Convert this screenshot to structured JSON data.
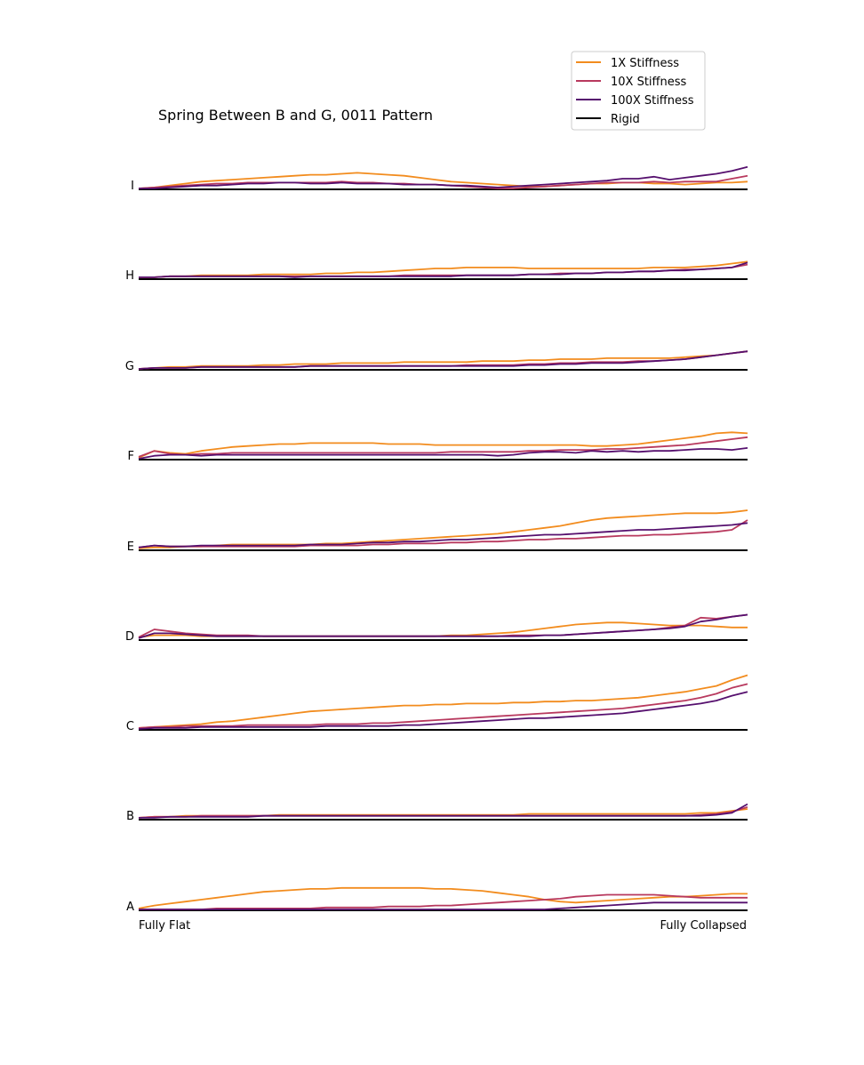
{
  "chart_data": {
    "type": "line",
    "title": "Spring Between B and G, 0011 Pattern",
    "x_start_label": "Fully Flat",
    "x_end_label": "Fully Collapsed",
    "legend_position": "top-right",
    "grid": false,
    "series_styles": [
      {
        "name": "1X Stiffness",
        "color": "#f28c1e"
      },
      {
        "name": "10X Stiffness",
        "color": "#b8395e"
      },
      {
        "name": "100X Stiffness",
        "color": "#56106e"
      },
      {
        "name": "Rigid",
        "color": "#000000"
      }
    ],
    "rows": [
      {
        "label": "I",
        "s1x": [
          0,
          1,
          3,
          5,
          7,
          8,
          9,
          10,
          11,
          12,
          13,
          14,
          14,
          15,
          16,
          15,
          14,
          13,
          11,
          9,
          7,
          6,
          5,
          4,
          3,
          2,
          2,
          3,
          4,
          5,
          5,
          6,
          6,
          5,
          5,
          4,
          5,
          6,
          6,
          7
        ],
        "s10x": [
          0,
          1,
          2,
          3,
          4,
          5,
          5,
          6,
          6,
          6,
          6,
          6,
          6,
          7,
          6,
          6,
          5,
          5,
          4,
          4,
          3,
          2,
          1,
          0,
          0,
          1,
          2,
          3,
          4,
          5,
          6,
          6,
          6,
          7,
          6,
          7,
          7,
          7,
          10,
          13
        ],
        "s100x": [
          0,
          0,
          1,
          2,
          3,
          3,
          4,
          5,
          5,
          6,
          6,
          5,
          5,
          6,
          5,
          5,
          5,
          4,
          4,
          4,
          3,
          3,
          2,
          1,
          2,
          3,
          4,
          5,
          6,
          7,
          8,
          10,
          10,
          12,
          9,
          11,
          13,
          15,
          18,
          22
        ]
      },
      {
        "label": "H",
        "s1x": [
          1,
          1,
          2,
          2,
          3,
          3,
          3,
          3,
          4,
          4,
          4,
          4,
          5,
          5,
          6,
          6,
          7,
          8,
          9,
          10,
          10,
          11,
          11,
          11,
          11,
          10,
          10,
          10,
          10,
          10,
          10,
          10,
          10,
          11,
          11,
          11,
          12,
          13,
          15,
          17
        ],
        "s10x": [
          1,
          1,
          2,
          2,
          2,
          2,
          2,
          2,
          2,
          2,
          2,
          2,
          2,
          2,
          2,
          2,
          2,
          3,
          3,
          3,
          3,
          3,
          3,
          3,
          3,
          4,
          4,
          5,
          5,
          5,
          6,
          6,
          7,
          7,
          8,
          9,
          9,
          10,
          11,
          14
        ],
        "s100x": [
          1,
          1,
          2,
          2,
          2,
          2,
          2,
          2,
          2,
          2,
          1,
          2,
          2,
          2,
          2,
          2,
          2,
          2,
          2,
          2,
          2,
          3,
          3,
          3,
          3,
          4,
          4,
          4,
          5,
          5,
          6,
          6,
          7,
          7,
          8,
          8,
          9,
          10,
          11,
          16
        ]
      },
      {
        "label": "G",
        "s1x": [
          0,
          1,
          2,
          2,
          3,
          3,
          3,
          3,
          4,
          4,
          5,
          5,
          5,
          6,
          6,
          6,
          6,
          7,
          7,
          7,
          7,
          7,
          8,
          8,
          8,
          9,
          9,
          10,
          10,
          10,
          11,
          11,
          11,
          11,
          11,
          12,
          13,
          14,
          16,
          18
        ],
        "s10x": [
          0,
          1,
          1,
          1,
          2,
          2,
          2,
          2,
          2,
          2,
          2,
          3,
          3,
          3,
          3,
          3,
          3,
          3,
          3,
          3,
          3,
          4,
          4,
          4,
          4,
          5,
          5,
          6,
          6,
          7,
          7,
          7,
          8,
          8,
          9,
          10,
          12,
          14,
          16,
          18
        ],
        "s100x": [
          0,
          1,
          1,
          1,
          2,
          2,
          2,
          2,
          2,
          2,
          2,
          3,
          3,
          3,
          3,
          3,
          3,
          3,
          3,
          3,
          3,
          3,
          3,
          3,
          3,
          4,
          4,
          5,
          5,
          6,
          6,
          6,
          7,
          8,
          9,
          10,
          12,
          14,
          16,
          18
        ]
      },
      {
        "label": "F",
        "s1x": [
          1,
          8,
          6,
          5,
          8,
          10,
          12,
          13,
          14,
          15,
          15,
          16,
          16,
          16,
          16,
          16,
          15,
          15,
          15,
          14,
          14,
          14,
          14,
          14,
          14,
          14,
          14,
          14,
          14,
          13,
          13,
          14,
          15,
          17,
          19,
          21,
          23,
          26,
          27,
          26
        ],
        "s10x": [
          2,
          8,
          5,
          4,
          5,
          5,
          6,
          6,
          6,
          6,
          6,
          6,
          6,
          6,
          6,
          6,
          6,
          6,
          6,
          6,
          7,
          7,
          7,
          7,
          7,
          8,
          8,
          9,
          9,
          9,
          10,
          10,
          11,
          12,
          13,
          14,
          16,
          18,
          20,
          22
        ],
        "s100x": [
          0,
          3,
          4,
          4,
          3,
          4,
          4,
          4,
          4,
          4,
          4,
          4,
          4,
          4,
          4,
          4,
          4,
          4,
          4,
          4,
          4,
          4,
          4,
          3,
          4,
          6,
          7,
          7,
          6,
          8,
          7,
          8,
          7,
          8,
          8,
          9,
          10,
          10,
          9,
          11
        ]
      },
      {
        "label": "E",
        "s1x": [
          1,
          2,
          2,
          3,
          3,
          4,
          5,
          5,
          5,
          5,
          5,
          5,
          6,
          6,
          7,
          8,
          9,
          10,
          11,
          12,
          13,
          14,
          15,
          16,
          18,
          20,
          22,
          24,
          27,
          30,
          32,
          33,
          34,
          35,
          36,
          37,
          37,
          37,
          38,
          40
        ],
        "s10x": [
          2,
          4,
          3,
          3,
          3,
          3,
          3,
          3,
          3,
          3,
          3,
          4,
          4,
          4,
          4,
          5,
          5,
          6,
          6,
          6,
          7,
          7,
          8,
          8,
          9,
          10,
          10,
          11,
          11,
          12,
          13,
          14,
          14,
          15,
          15,
          16,
          17,
          18,
          20,
          30
        ],
        "s100x": [
          2,
          4,
          3,
          3,
          4,
          4,
          4,
          4,
          4,
          4,
          4,
          5,
          5,
          5,
          6,
          7,
          7,
          8,
          8,
          9,
          10,
          10,
          11,
          12,
          13,
          14,
          15,
          15,
          16,
          17,
          18,
          19,
          20,
          20,
          21,
          22,
          23,
          24,
          25,
          27
        ]
      },
      {
        "label": "D",
        "s1x": [
          2,
          4,
          4,
          4,
          3,
          3,
          3,
          3,
          3,
          3,
          3,
          3,
          3,
          3,
          3,
          3,
          3,
          3,
          3,
          3,
          4,
          4,
          5,
          6,
          7,
          9,
          11,
          13,
          15,
          16,
          17,
          17,
          16,
          15,
          14,
          14,
          14,
          13,
          12,
          12
        ],
        "s10x": [
          2,
          10,
          8,
          6,
          5,
          4,
          4,
          4,
          3,
          3,
          3,
          3,
          3,
          3,
          3,
          3,
          3,
          3,
          3,
          3,
          3,
          3,
          3,
          3,
          4,
          4,
          4,
          4,
          5,
          6,
          7,
          8,
          9,
          10,
          12,
          14,
          22,
          21,
          23,
          25
        ],
        "s100x": [
          1,
          6,
          6,
          5,
          4,
          3,
          3,
          3,
          3,
          3,
          3,
          3,
          3,
          3,
          3,
          3,
          3,
          3,
          3,
          3,
          3,
          3,
          3,
          3,
          3,
          3,
          4,
          4,
          5,
          6,
          7,
          8,
          9,
          10,
          11,
          13,
          18,
          20,
          23,
          25
        ]
      },
      {
        "label": "C",
        "s1x": [
          1,
          2,
          3,
          4,
          5,
          7,
          8,
          10,
          12,
          14,
          16,
          18,
          19,
          20,
          21,
          22,
          23,
          24,
          24,
          25,
          25,
          26,
          26,
          26,
          27,
          27,
          28,
          28,
          29,
          29,
          30,
          31,
          32,
          34,
          36,
          38,
          41,
          44,
          50,
          55
        ],
        "s10x": [
          1,
          2,
          2,
          3,
          3,
          3,
          3,
          4,
          4,
          4,
          4,
          4,
          5,
          5,
          5,
          6,
          6,
          7,
          8,
          9,
          10,
          11,
          12,
          13,
          14,
          15,
          16,
          17,
          18,
          19,
          20,
          21,
          23,
          25,
          27,
          29,
          32,
          36,
          42,
          46
        ],
        "s100x": [
          0,
          1,
          1,
          1,
          2,
          2,
          2,
          2,
          2,
          2,
          2,
          2,
          3,
          3,
          3,
          3,
          3,
          4,
          4,
          5,
          6,
          7,
          8,
          9,
          10,
          11,
          11,
          12,
          13,
          14,
          15,
          16,
          18,
          20,
          22,
          24,
          26,
          29,
          34,
          38
        ]
      },
      {
        "label": "B",
        "s1x": [
          1,
          2,
          2,
          3,
          3,
          3,
          3,
          3,
          3,
          4,
          4,
          4,
          4,
          4,
          4,
          4,
          4,
          4,
          4,
          4,
          4,
          4,
          4,
          4,
          4,
          5,
          5,
          5,
          5,
          5,
          5,
          5,
          5,
          5,
          5,
          5,
          6,
          6,
          8,
          10
        ],
        "s10x": [
          1,
          2,
          2,
          2,
          3,
          3,
          3,
          3,
          3,
          3,
          3,
          3,
          3,
          3,
          3,
          3,
          3,
          3,
          3,
          3,
          3,
          3,
          3,
          3,
          3,
          3,
          3,
          3,
          3,
          3,
          3,
          3,
          3,
          3,
          3,
          3,
          4,
          5,
          7,
          12
        ],
        "s100x": [
          1,
          1,
          2,
          2,
          2,
          2,
          2,
          2,
          3,
          3,
          3,
          3,
          3,
          3,
          3,
          3,
          3,
          3,
          3,
          3,
          3,
          3,
          3,
          3,
          3,
          3,
          3,
          3,
          3,
          3,
          3,
          3,
          3,
          3,
          3,
          3,
          3,
          4,
          6,
          15
        ]
      },
      {
        "label": "A",
        "s1x": [
          1,
          4,
          6,
          8,
          10,
          12,
          14,
          16,
          18,
          19,
          20,
          21,
          21,
          22,
          22,
          22,
          22,
          22,
          22,
          21,
          21,
          20,
          19,
          17,
          15,
          13,
          10,
          8,
          7,
          8,
          9,
          10,
          11,
          12,
          13,
          13,
          14,
          15,
          16,
          16
        ],
        "s10x": [
          0,
          0,
          0,
          0,
          0,
          1,
          1,
          1,
          1,
          1,
          1,
          1,
          2,
          2,
          2,
          2,
          3,
          3,
          3,
          4,
          4,
          5,
          6,
          7,
          8,
          9,
          10,
          11,
          13,
          14,
          15,
          15,
          15,
          15,
          14,
          13,
          12,
          12,
          12,
          12
        ],
        "s100x": [
          0,
          0,
          0,
          0,
          0,
          0,
          0,
          0,
          0,
          0,
          0,
          0,
          0,
          0,
          0,
          0,
          0,
          0,
          0,
          0,
          0,
          0,
          0,
          0,
          0,
          0,
          0,
          1,
          2,
          3,
          4,
          5,
          6,
          7,
          7,
          7,
          7,
          7,
          7,
          7
        ]
      }
    ]
  }
}
